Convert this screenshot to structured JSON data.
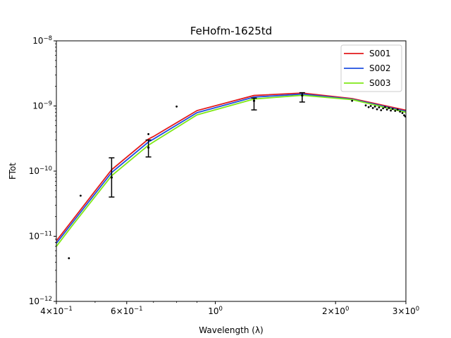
{
  "chart_data": {
    "type": "line",
    "title": "FeHofm-1625td",
    "xlabel": "Wavelength (λ)",
    "ylabel": "FTot",
    "xscale": "log",
    "yscale": "log",
    "xlim": [
      0.4,
      3.0
    ],
    "ylim": [
      1e-12,
      1e-08
    ],
    "grid": false,
    "legend_position": "top-right",
    "x_ticks": [
      {
        "value": 0.4,
        "base": "4×10",
        "exp": "−1"
      },
      {
        "value": 0.6,
        "base": "6×10",
        "exp": "−1"
      },
      {
        "value": 1.0,
        "base": "10",
        "exp": "0"
      },
      {
        "value": 2.0,
        "base": "2×10",
        "exp": "0"
      },
      {
        "value": 3.0,
        "base": "3×10",
        "exp": "0"
      }
    ],
    "y_ticks": [
      {
        "value": 1e-12,
        "base": "10",
        "exp": "−12"
      },
      {
        "value": 1e-11,
        "base": "10",
        "exp": "−11"
      },
      {
        "value": 1e-10,
        "base": "10",
        "exp": "−10"
      },
      {
        "value": 1e-09,
        "base": "10",
        "exp": "−9"
      },
      {
        "value": 1e-08,
        "base": "10",
        "exp": "−8"
      }
    ],
    "series": [
      {
        "name": "S001",
        "color": "#e31a1c",
        "x": [
          0.4,
          0.44,
          0.55,
          0.68,
          0.7,
          0.9,
          1.25,
          1.65,
          2.2,
          3.0
        ],
        "y": [
          8.5e-12,
          1.8e-11,
          1.05e-10,
          3.1e-10,
          3.4e-10,
          8.5e-10,
          1.45e-09,
          1.58e-09,
          1.3e-09,
          8.6e-10
        ]
      },
      {
        "name": "S002",
        "color": "#1f4fe0",
        "x": [
          0.4,
          0.44,
          0.55,
          0.68,
          0.7,
          0.9,
          1.25,
          1.65,
          2.2,
          3.0
        ],
        "y": [
          7.8e-12,
          1.65e-11,
          9.5e-11,
          2.8e-10,
          3.1e-10,
          7.9e-10,
          1.37e-09,
          1.52e-09,
          1.27e-09,
          8.3e-10
        ]
      },
      {
        "name": "S003",
        "color": "#7fe817",
        "x": [
          0.4,
          0.44,
          0.55,
          0.68,
          0.7,
          0.9,
          1.25,
          1.65,
          2.2,
          3.0
        ],
        "y": [
          7e-12,
          1.5e-11,
          8.5e-11,
          2.5e-10,
          2.8e-10,
          7.3e-10,
          1.28e-09,
          1.46e-09,
          1.25e-09,
          8e-10
        ]
      }
    ],
    "observations": [
      {
        "x": 0.55,
        "y": 8e-11,
        "ylow": 4e-11,
        "yhigh": 1.6e-10
      },
      {
        "x": 0.68,
        "y": 2.3e-10,
        "ylow": 1.65e-10,
        "yhigh": 3e-10
      },
      {
        "x": 1.25,
        "y": 1.2e-09,
        "ylow": 8.7e-10,
        "yhigh": 1.32e-09
      },
      {
        "x": 1.65,
        "y": 1.45e-09,
        "ylow": 1.15e-09,
        "yhigh": 1.6e-09
      }
    ],
    "scatter_points": [
      {
        "x": 0.43,
        "y": 4.6e-12
      },
      {
        "x": 0.46,
        "y": 4.2e-11
      },
      {
        "x": 0.68,
        "y": 3.7e-10
      },
      {
        "x": 0.8,
        "y": 9.8e-10
      },
      {
        "x": 2.2,
        "y": 1.2e-09
      },
      {
        "x": 2.38,
        "y": 1.02e-09
      },
      {
        "x": 2.42,
        "y": 9.6e-10
      },
      {
        "x": 2.45,
        "y": 1e-09
      },
      {
        "x": 2.48,
        "y": 9.3e-10
      },
      {
        "x": 2.51,
        "y": 9.8e-10
      },
      {
        "x": 2.54,
        "y": 8.9e-10
      },
      {
        "x": 2.57,
        "y": 9.5e-10
      },
      {
        "x": 2.6,
        "y": 8.6e-10
      },
      {
        "x": 2.63,
        "y": 9.2e-10
      },
      {
        "x": 2.66,
        "y": 9.6e-10
      },
      {
        "x": 2.69,
        "y": 8.8e-10
      },
      {
        "x": 2.72,
        "y": 9.3e-10
      },
      {
        "x": 2.75,
        "y": 8.5e-10
      },
      {
        "x": 2.78,
        "y": 9e-10
      },
      {
        "x": 2.82,
        "y": 8.4e-10
      },
      {
        "x": 2.86,
        "y": 8.8e-10
      },
      {
        "x": 2.9,
        "y": 8.2e-10
      },
      {
        "x": 2.94,
        "y": 7.8e-10
      },
      {
        "x": 2.97,
        "y": 7.2e-10
      },
      {
        "x": 2.99,
        "y": 6.9e-10
      }
    ]
  }
}
